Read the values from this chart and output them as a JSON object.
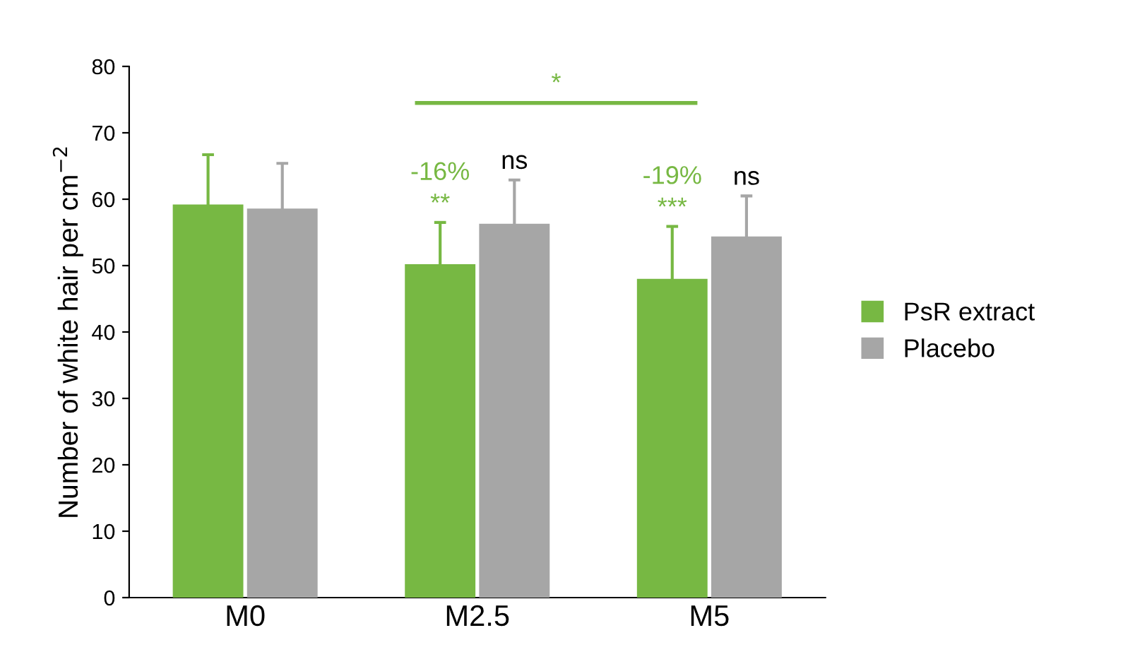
{
  "chart_data": {
    "type": "bar",
    "ylabel": "Number of white hair per cm$^{−2}$",
    "categories": [
      "M0",
      "M2.5",
      "M5"
    ],
    "series": [
      {
        "name": "PsR extract",
        "color": "#77b843",
        "values": [
          59.2,
          50.2,
          48.0
        ],
        "errors": [
          7.5,
          6.3,
          7.9
        ]
      },
      {
        "name": "Placebo",
        "color": "#a6a6a6",
        "values": [
          58.6,
          56.3,
          54.4
        ],
        "errors": [
          6.8,
          6.6,
          6.1
        ]
      }
    ],
    "ylim": [
      0,
      80
    ],
    "yticks": [
      0,
      10,
      20,
      30,
      40,
      50,
      60,
      70,
      80
    ],
    "grid": false,
    "legend": "right",
    "annotations": [
      "-16%",
      "**",
      "ns",
      "-19%",
      "***",
      "ns",
      "*"
    ]
  }
}
